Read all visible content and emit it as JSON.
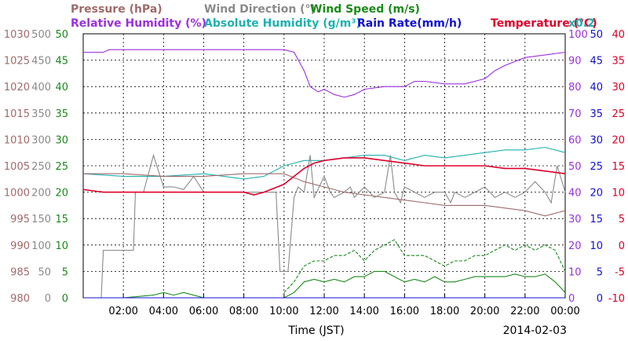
{
  "chart_data": {
    "type": "line",
    "date": "2014-02-03",
    "xlabel": "Time (JST)",
    "x_ticks": [
      "02:00",
      "04:00",
      "06:00",
      "08:00",
      "10:00",
      "12:00",
      "14:00",
      "16:00",
      "18:00",
      "20:00",
      "22:00",
      "00:00"
    ],
    "xlim": [
      0,
      24
    ],
    "grid": true,
    "legend_rows": [
      [
        {
          "text": "Pressure (hPa)",
          "color": "#a06a6a"
        },
        {
          "text": "Wind Direction (°)",
          "color": "#8a8a8a"
        },
        {
          "text": "Wind Speed (m/s)",
          "color": "#1a8a1a"
        }
      ],
      [
        {
          "text": "Relative Humidity (%)",
          "color": "#9b30e0"
        },
        {
          "text": "Absolute Humidity (g/m³)",
          "color": "#20b0b0"
        },
        {
          "text": "Rain Rate(mm/h)",
          "color": "#1010d0"
        },
        {
          "text": "Temperature (°C)",
          "color": "#e0002a"
        },
        {
          "text": "x0.2",
          "color": "#20b0b0"
        }
      ]
    ],
    "axes": {
      "pressure": {
        "color": "#a06a6a",
        "ticks": [
          "1030",
          "1025",
          "1020",
          "1015",
          "1010",
          "1005",
          "1000",
          "995",
          "990",
          "985",
          "980"
        ],
        "range": [
          980,
          1030
        ]
      },
      "wind_direction": {
        "color": "#8a8a8a",
        "ticks": [
          "500",
          "450",
          "400",
          "350",
          "300",
          "250",
          "200",
          "150",
          "100",
          "50",
          "0"
        ],
        "range": [
          0,
          500
        ]
      },
      "wind_speed": {
        "color": "#1a8a1a",
        "ticks": [
          "50",
          "45",
          "40",
          "35",
          "30",
          "25",
          "20",
          "15",
          "10",
          "5",
          "0"
        ],
        "range": [
          0,
          50
        ]
      },
      "humidity": {
        "color": "#9b30e0",
        "ticks": [
          "100",
          "90",
          "80",
          "70",
          "60",
          "50",
          "40",
          "30",
          "20",
          "10",
          "0"
        ],
        "range": [
          0,
          100
        ]
      },
      "rain_rate": {
        "color": "#1010d0",
        "ticks": [
          "50",
          "45",
          "40",
          "35",
          "30",
          "25",
          "20",
          "15",
          "10",
          "5",
          "0"
        ],
        "range": [
          0,
          50
        ]
      },
      "temperature": {
        "color": "#e0002a",
        "ticks": [
          "40",
          "35",
          "30",
          "25",
          "20",
          "15",
          "10",
          "5",
          "0",
          "-5",
          "-10"
        ],
        "range": [
          -10,
          40
        ]
      }
    },
    "series": [
      {
        "name": "Relative Humidity (%)",
        "axis": "humidity",
        "color": "#9b30e0",
        "x": [
          0,
          1,
          1.3,
          2,
          4,
          6,
          8,
          10,
          10.5,
          11,
          11.3,
          11.7,
          12,
          12.5,
          13,
          13.5,
          14,
          15,
          16,
          16.5,
          17,
          18,
          19,
          20,
          20.5,
          21,
          22,
          23,
          24
        ],
        "y": [
          93,
          93,
          94,
          94,
          94,
          94,
          94,
          94,
          93,
          86,
          80,
          78,
          79,
          77,
          76,
          77,
          79,
          80,
          80,
          82,
          82,
          81,
          81,
          83,
          86,
          88,
          91,
          92,
          93
        ]
      },
      {
        "name": "Absolute Humidity (g/m³)",
        "axis": "humidity",
        "color": "#20b0b0",
        "x": [
          0,
          2,
          4,
          6,
          8,
          9,
          10,
          11,
          12,
          13,
          14,
          15,
          16,
          17,
          18,
          19,
          20,
          21,
          22,
          23,
          24
        ],
        "y": [
          47,
          46,
          46,
          47,
          45,
          46,
          50,
          52,
          52,
          53,
          54,
          54,
          52,
          54,
          53,
          54,
          55,
          56,
          56,
          57,
          55
        ],
        "scale": "x0.2"
      },
      {
        "name": "Temperature (°C)",
        "axis": "temperature",
        "color": "#e0002a",
        "x": [
          0,
          1,
          2,
          3,
          4,
          5,
          6,
          7,
          8,
          8.5,
          9,
          10,
          10.5,
          11,
          11.5,
          12,
          13,
          14,
          15,
          16,
          17,
          18,
          19,
          20,
          21,
          22,
          23,
          24
        ],
        "y": [
          10.5,
          10,
          10,
          10,
          10,
          10,
          10,
          10,
          10,
          9.5,
          10,
          11.5,
          13,
          14.5,
          15.5,
          16,
          16.5,
          16.5,
          16,
          15.5,
          15,
          15,
          15,
          15,
          14.5,
          14.5,
          14,
          13.5
        ]
      },
      {
        "name": "Pressure (hPa)",
        "axis": "pressure",
        "color": "#a06a6a",
        "x": [
          0,
          2,
          4,
          6,
          8,
          10,
          11,
          12,
          13,
          14,
          15,
          16,
          17,
          18,
          19,
          20,
          21,
          22,
          23,
          24
        ],
        "y": [
          1003.5,
          1003.5,
          1003,
          1003,
          1003.5,
          1003.5,
          1002,
          1001,
          1000,
          999.5,
          999,
          998.5,
          998,
          997.5,
          997.5,
          997.5,
          997,
          996.5,
          995.5,
          996.5
        ]
      },
      {
        "name": "Wind Direction (°)",
        "axis": "wind_direction",
        "color": "#8a8a8a",
        "x": [
          0,
          0.9,
          1,
          1.5,
          2,
          2.5,
          2.6,
          3,
          3.5,
          4,
          4.5,
          5,
          5.5,
          6,
          6.5,
          7,
          7.5,
          8,
          8.5,
          9,
          9.5,
          9.6,
          9.8,
          10,
          10.2,
          10.5,
          10.7,
          11,
          11.3,
          11.5,
          12,
          12.3,
          12.5,
          13,
          13.3,
          13.5,
          14,
          14.5,
          15,
          15.3,
          15.5,
          15.8,
          16,
          16.5,
          17,
          17.5,
          18,
          18.3,
          18.5,
          19,
          19.5,
          20,
          20.5,
          21,
          21.5,
          22,
          22.5,
          23,
          23.3,
          23.6,
          24
        ],
        "y": [
          0,
          0,
          90,
          90,
          90,
          90,
          200,
          200,
          270,
          210,
          210,
          205,
          230,
          200,
          200,
          200,
          200,
          200,
          200,
          200,
          200,
          200,
          50,
          50,
          50,
          190,
          210,
          200,
          270,
          190,
          230,
          200,
          190,
          200,
          210,
          190,
          210,
          190,
          200,
          270,
          200,
          180,
          210,
          200,
          190,
          200,
          200,
          180,
          200,
          190,
          200,
          210,
          190,
          200,
          190,
          200,
          220,
          200,
          180,
          250,
          200
        ]
      },
      {
        "name": "Wind Speed (m/s)",
        "axis": "wind_speed",
        "color": "#1a8a1a",
        "x": [
          0,
          2,
          3.5,
          4,
          4.5,
          5,
          6,
          7,
          8,
          9,
          10,
          10.5,
          11,
          11.5,
          12,
          12.5,
          13,
          13.5,
          14,
          14.5,
          15,
          15.5,
          16,
          16.5,
          17,
          17.5,
          18,
          18.5,
          19,
          19.5,
          20,
          20.5,
          21,
          21.5,
          22,
          22.5,
          23,
          23.5,
          24
        ],
        "y": [
          0,
          0,
          0.5,
          1,
          0.5,
          1,
          0,
          0,
          0,
          0,
          0,
          1,
          3,
          3.5,
          3,
          3.5,
          3,
          4,
          4,
          5,
          5,
          4,
          3,
          3.5,
          3,
          4,
          3,
          3,
          3.5,
          4,
          4,
          4,
          4,
          4.5,
          4,
          4,
          4.5,
          3,
          1
        ]
      },
      {
        "name": "Wind Speed gust",
        "axis": "wind_speed",
        "color": "#1a8a1a",
        "dashed": true,
        "x": [
          10,
          10.5,
          11,
          11.5,
          12,
          12.5,
          13,
          13.5,
          14,
          14.5,
          15,
          15.5,
          16,
          16.5,
          17,
          17.5,
          18,
          18.5,
          19,
          19.5,
          20,
          20.5,
          21,
          21.5,
          22,
          22.5,
          23,
          23.5,
          24
        ],
        "y": [
          1,
          3,
          6,
          7,
          7,
          8,
          8,
          9,
          7,
          9,
          10,
          11,
          8,
          8,
          8,
          7,
          6,
          7,
          7,
          8,
          8,
          9,
          10,
          9,
          10,
          9,
          10,
          9,
          5
        ]
      },
      {
        "name": "Rain Rate(mm/h)",
        "axis": "rain_rate",
        "color": "#1010d0",
        "x": [
          0,
          24
        ],
        "y": [
          0,
          0
        ]
      }
    ]
  }
}
